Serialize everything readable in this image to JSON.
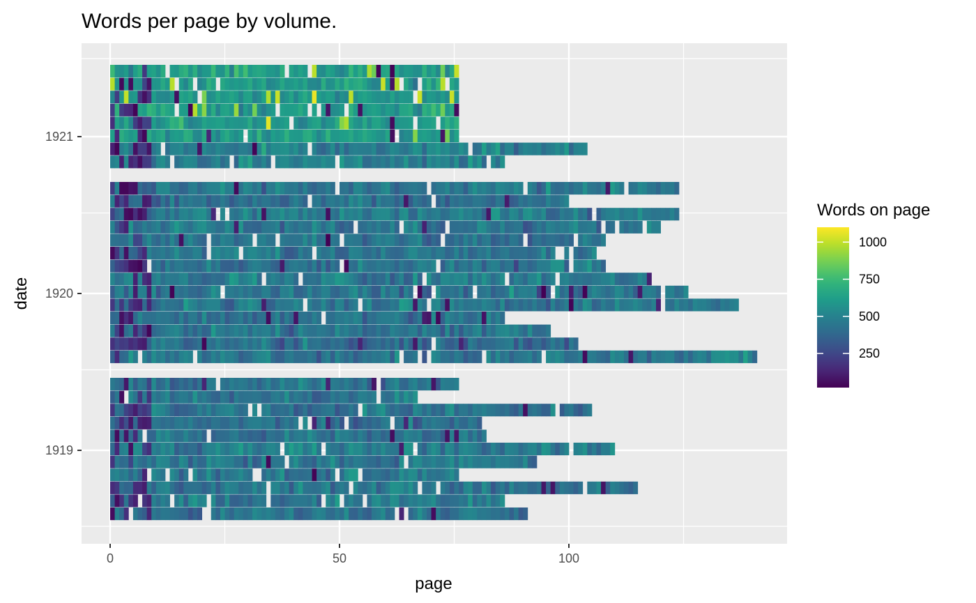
{
  "chart_data": {
    "type": "heatmap",
    "title": "Words per page by volume.",
    "xlabel": "page",
    "ylabel": "date",
    "x_ticks": [
      0,
      50,
      100
    ],
    "y_ticks": [
      "1919",
      "1920",
      "1921"
    ],
    "xlim": [
      -6,
      148
    ],
    "legend": {
      "title": "Words on page",
      "position": "right",
      "breaks": [
        250,
        500,
        750,
        1000
      ],
      "range": [
        20,
        1100
      ],
      "palette": "viridis"
    },
    "grid": true,
    "colors": {
      "panel_bg": "#ebebeb",
      "grid": "#ffffff",
      "viridis": [
        "#440154",
        "#482878",
        "#3e4a89",
        "#31688e",
        "#26828e",
        "#1f9e89",
        "#35b779",
        "#6ece58",
        "#b5de2b",
        "#fde725"
      ]
    },
    "series": [
      {
        "year": "1919",
        "pages": 76,
        "mean": 440
      },
      {
        "year": "1919",
        "pages": 67,
        "mean": 430
      },
      {
        "year": "1919",
        "pages": 105,
        "mean": 430
      },
      {
        "year": "1919",
        "pages": 81,
        "mean": 420
      },
      {
        "year": "1919",
        "pages": 82,
        "mean": 430
      },
      {
        "year": "1919",
        "pages": 110,
        "mean": 470
      },
      {
        "year": "1919",
        "pages": 93,
        "mean": 440
      },
      {
        "year": "1919",
        "pages": 76,
        "mean": 450
      },
      {
        "year": "1919",
        "pages": 115,
        "mean": 440
      },
      {
        "year": "1919",
        "pages": 86,
        "mean": 440
      },
      {
        "year": "1919",
        "pages": 91,
        "mean": 430
      },
      {
        "year": "1920",
        "pages": 141,
        "mean": 450
      },
      {
        "year": "1920",
        "pages": 102,
        "mean": 410
      },
      {
        "year": "1920",
        "pages": 96,
        "mean": 440
      },
      {
        "year": "1920",
        "pages": 86,
        "mean": 430
      },
      {
        "year": "1920",
        "pages": 137,
        "mean": 450
      },
      {
        "year": "1920",
        "pages": 126,
        "mean": 440
      },
      {
        "year": "1920",
        "pages": 118,
        "mean": 460
      },
      {
        "year": "1920",
        "pages": 108,
        "mean": 430
      },
      {
        "year": "1920",
        "pages": 106,
        "mean": 440
      },
      {
        "year": "1920",
        "pages": 108,
        "mean": 440
      },
      {
        "year": "1920",
        "pages": 120,
        "mean": 450
      },
      {
        "year": "1920",
        "pages": 124,
        "mean": 460
      },
      {
        "year": "1920",
        "pages": 100,
        "mean": 430
      },
      {
        "year": "1920",
        "pages": 124,
        "mean": 450
      },
      {
        "year": "1921",
        "pages": 86,
        "mean": 490
      },
      {
        "year": "1921",
        "pages": 104,
        "mean": 480
      },
      {
        "year": "1921",
        "pages": 76,
        "mean": 610
      },
      {
        "year": "1921",
        "pages": 76,
        "mean": 600
      },
      {
        "year": "1921",
        "pages": 76,
        "mean": 620
      },
      {
        "year": "1921",
        "pages": 76,
        "mean": 600
      },
      {
        "year": "1921",
        "pages": 76,
        "mean": 600
      },
      {
        "year": "1921",
        "pages": 76,
        "mean": 620
      }
    ]
  }
}
